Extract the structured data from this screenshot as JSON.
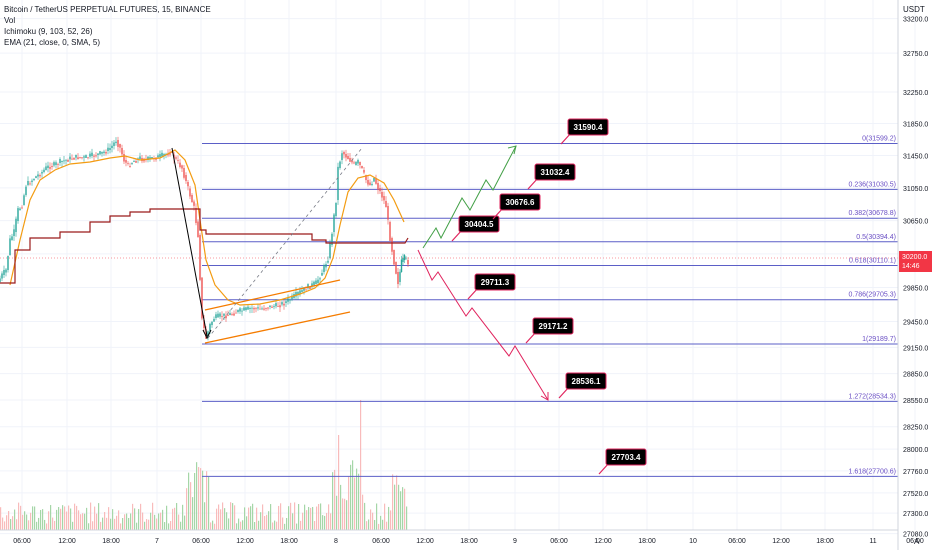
{
  "legend": {
    "title": "Bitcoin / TetherUS PERPETUAL FUTURES, 15, BINANCE",
    "vol": "Vol",
    "ichimoku": "Ichimoku (9, 103, 52, 26)",
    "ema": "EMA (21, close, 0, SMA, 5)"
  },
  "currency": "USDT",
  "auto_button": "A",
  "colors": {
    "fib_line": "#5b5fc7",
    "fib_label": "#6a4fc4",
    "up_arrow": "#43a047",
    "down_arrow": "#e0245e",
    "ema": "#f39c12",
    "kijun": "#9b1b1b",
    "channel": "#f57c00",
    "price_badge": "#f23645",
    "callout_bg": "#000000",
    "callout_border": "#e0245e",
    "candle_up": "#26a69a",
    "candle_down": "#ef5350",
    "vol_up": "#a5d6a7",
    "vol_down": "#f8bbbb"
  },
  "chart_data": {
    "type": "candlestick",
    "title": "Bitcoin / TetherUS PERPETUAL FUTURES, 15, BINANCE",
    "y_axis": {
      "scale": "log",
      "ticks": [
        27080.0,
        27300.0,
        27520.0,
        27760.0,
        28000.0,
        28250.0,
        28550.0,
        28850.0,
        29150.0,
        29450.0,
        29850.0,
        30250.0,
        30650.0,
        31050.0,
        31450.0,
        31850.0,
        32250.0,
        32750.0,
        33200.0
      ]
    },
    "x_axis": {
      "ticks": [
        "06:00",
        "12:00",
        "18:00",
        "7",
        "06:00",
        "12:00",
        "18:00",
        "8",
        "06:00",
        "12:00",
        "18:00",
        "9",
        "06:00",
        "12:00",
        "18:00",
        "10",
        "06:00",
        "12:00",
        "18:00",
        "11",
        "06:00"
      ]
    },
    "current_price": {
      "price": "30200.0",
      "countdown": "14:46"
    },
    "fib_levels": [
      {
        "label": "0(31599.2)",
        "value": 31599.2
      },
      {
        "label": "0.236(31030.5)",
        "value": 31030.5
      },
      {
        "label": "0.382(30678.8)",
        "value": 30678.8
      },
      {
        "label": "0.5(30394.4)",
        "value": 30394.4
      },
      {
        "label": "0.618(30110.1)",
        "value": 30110.1
      },
      {
        "label": "0.786(29705.3)",
        "value": 29705.3
      },
      {
        "label": "1(29189.7)",
        "value": 29189.7
      },
      {
        "label": "1.272(28534.3)",
        "value": 28534.3
      },
      {
        "label": "1.618(27700.6)",
        "value": 27700.6
      }
    ],
    "targets_up": [
      "30404.5",
      "30676.6",
      "31032.4",
      "31590.4"
    ],
    "targets_down": [
      "29711.3",
      "29171.2",
      "28536.1",
      "27703.4"
    ],
    "series": [
      {
        "name": "Ichimoku (9, 103, 52, 26)"
      },
      {
        "name": "EMA (21, close, 0, SMA, 5)"
      },
      {
        "name": "Vol"
      }
    ]
  }
}
